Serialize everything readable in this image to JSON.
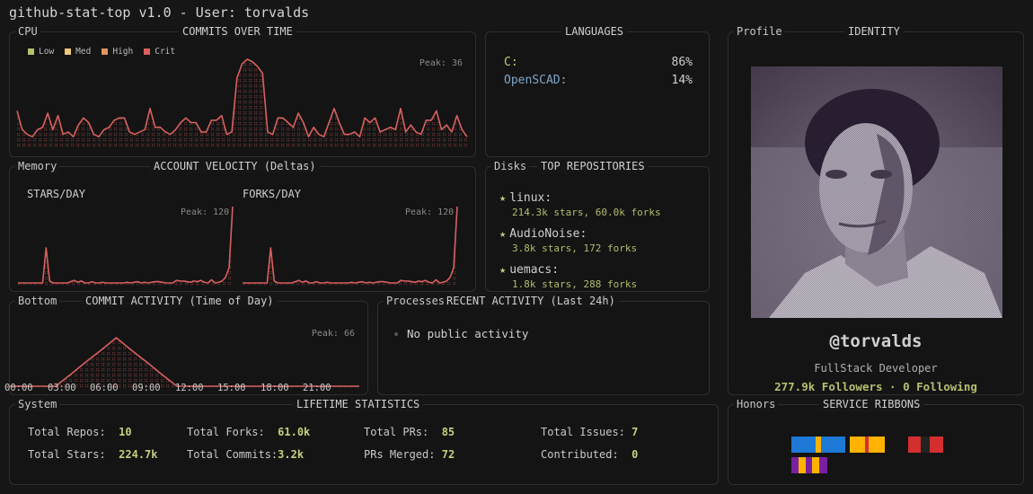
{
  "app": {
    "title": "github-stat-top v1.0 - User: torvalds"
  },
  "commits_panel": {
    "tag": "CPU",
    "title": "COMMITS OVER TIME",
    "peak": "Peak: 36",
    "legend": [
      {
        "label": "Low",
        "color": "#b5c26b"
      },
      {
        "label": "Med",
        "color": "#f1c778"
      },
      {
        "label": "High",
        "color": "#e3935e"
      },
      {
        "label": "Crit",
        "color": "#d9605f"
      }
    ]
  },
  "languages_panel": {
    "title": "LANGUAGES",
    "items": [
      {
        "name": "C:",
        "percent": "86%",
        "color": "#c8cc74"
      },
      {
        "name": "OpenSCAD:",
        "percent": "14%",
        "color": "#7fa6c9"
      }
    ]
  },
  "identity_panel": {
    "tag": "Profile",
    "title": "IDENTITY",
    "handle": "@torvalds",
    "role": "FullStack Developer",
    "followers": "277.9k Followers · 0 Following"
  },
  "velocity_panel": {
    "tag": "Memory",
    "title": "ACCOUNT VELOCITY (Deltas)",
    "stars_label": "STARS/DAY",
    "forks_label": "FORKS/DAY",
    "stars_peak": "Peak: 120",
    "forks_peak": "Peak: 120"
  },
  "repos_panel": {
    "tag": "Disks",
    "title": "TOP REPOSITORIES",
    "items": [
      {
        "name": "linux:",
        "details": "214.3k stars, 60.0k forks"
      },
      {
        "name": "AudioNoise:",
        "details": "3.8k stars, 172 forks"
      },
      {
        "name": "uemacs:",
        "details": "1.8k stars, 288 forks"
      }
    ]
  },
  "time_panel": {
    "tag": "Bottom",
    "title": "COMMIT ACTIVITY (Time of Day)",
    "peak": "Peak: 66",
    "ticks": [
      "00:00",
      "03:00",
      "06:00",
      "09:00",
      "12:00",
      "15:00",
      "18:00",
      "21:00"
    ]
  },
  "activity_panel": {
    "tag": "Processes",
    "title": "RECENT ACTIVITY (Last 24h)",
    "items": [
      "No public activity"
    ]
  },
  "stats_panel": {
    "tag": "System",
    "title": "LIFETIME STATISTICS",
    "rows": [
      [
        {
          "label": "Total Repos:",
          "value": "10"
        },
        {
          "label": "Total Forks:",
          "value": "61.0k"
        },
        {
          "label": "Total PRs:",
          "value": "85"
        },
        {
          "label": "Total Issues:",
          "value": "7"
        }
      ],
      [
        {
          "label": "Total Stars:",
          "value": "224.7k"
        },
        {
          "label": "Total Commits:",
          "value": "3.2k"
        },
        {
          "label": "PRs Merged:",
          "value": "72"
        },
        {
          "label": "Contributed:",
          "value": "0"
        }
      ]
    ]
  },
  "honors_panel": {
    "tag": "Honors",
    "title": "SERVICE RIBBONS",
    "ribbons": [
      {
        "stripes": [
          [
            "#1e78d6",
            42
          ],
          [
            "#ffb300",
            9
          ],
          [
            "#1e78d6",
            42
          ]
        ]
      },
      {
        "stripes": [
          [
            "#ffb300",
            26
          ],
          [
            "#d32f2f",
            7
          ],
          [
            "#ffb300",
            27
          ]
        ]
      },
      {
        "stripes": [
          [
            "#d32f2f",
            22
          ],
          [
            "#222222",
            15
          ],
          [
            "#d32f2f",
            23
          ]
        ]
      },
      {
        "stripes": [
          [
            "#7b1fa2",
            12
          ],
          [
            "#ffb300",
            12
          ],
          [
            "#7b1fa2",
            12
          ],
          [
            "#ffb300",
            12
          ],
          [
            "#7b1fa2",
            13
          ]
        ]
      }
    ]
  },
  "chart_data": [
    {
      "type": "line",
      "title": "COMMITS OVER TIME",
      "peak": 36,
      "values": [
        14,
        6,
        4,
        3,
        6,
        7,
        13,
        6,
        12,
        4,
        5,
        3,
        8,
        11,
        9,
        4,
        3,
        6,
        7,
        10,
        11,
        11,
        5,
        4,
        5,
        6,
        15,
        7,
        7,
        5,
        4,
        6,
        9,
        11,
        9,
        9,
        5,
        5,
        10,
        10,
        12,
        4,
        5,
        28,
        34,
        36,
        35,
        33,
        30,
        5,
        4,
        11,
        11,
        9,
        7,
        13,
        9,
        3,
        7,
        4,
        3,
        9,
        15,
        9,
        4,
        4,
        5,
        3,
        11,
        9,
        11,
        5,
        6,
        7,
        6,
        15,
        5,
        8,
        5,
        4,
        10,
        10,
        14,
        6,
        8,
        5,
        12,
        6,
        3
      ],
      "ylim": [
        0,
        36
      ]
    },
    {
      "type": "line",
      "title": "STARS/DAY",
      "peak": 120,
      "values": [
        0,
        0,
        0,
        0,
        0,
        0,
        0,
        0,
        55,
        3,
        0,
        0,
        0,
        0,
        0,
        2,
        4,
        1,
        3,
        0,
        0,
        2,
        0,
        0,
        1,
        0,
        0,
        0,
        0,
        0,
        0,
        1,
        0,
        1,
        2,
        0,
        1,
        0,
        1,
        2,
        2,
        1,
        0,
        0,
        0,
        4,
        3,
        3,
        2,
        1,
        3,
        2,
        4,
        1,
        0,
        5,
        0,
        1,
        3,
        9,
        24,
        120
      ],
      "ylim": [
        0,
        120
      ]
    },
    {
      "type": "line",
      "title": "FORKS/DAY",
      "peak": 120,
      "values": [
        0,
        0,
        0,
        0,
        0,
        0,
        0,
        0,
        55,
        3,
        0,
        0,
        0,
        0,
        0,
        2,
        4,
        1,
        3,
        0,
        0,
        2,
        0,
        0,
        1,
        0,
        0,
        0,
        0,
        0,
        0,
        1,
        0,
        1,
        2,
        0,
        1,
        0,
        1,
        2,
        2,
        1,
        0,
        0,
        0,
        4,
        3,
        3,
        2,
        1,
        3,
        2,
        4,
        1,
        0,
        5,
        0,
        1,
        3,
        9,
        24,
        120
      ],
      "ylim": [
        0,
        120
      ]
    },
    {
      "type": "area",
      "title": "COMMIT ACTIVITY (Time of Day)",
      "peak": 66,
      "x": [
        "00:00",
        "03:00",
        "06:00",
        "09:00",
        "12:00",
        "15:00",
        "18:00",
        "21:00"
      ],
      "hourly": [
        0,
        0,
        0,
        0,
        16,
        33,
        49,
        66,
        49,
        33,
        16,
        0,
        0,
        0,
        0,
        0,
        0,
        0,
        0,
        0,
        0,
        0,
        0,
        0
      ],
      "ylim": [
        0,
        66
      ]
    }
  ]
}
